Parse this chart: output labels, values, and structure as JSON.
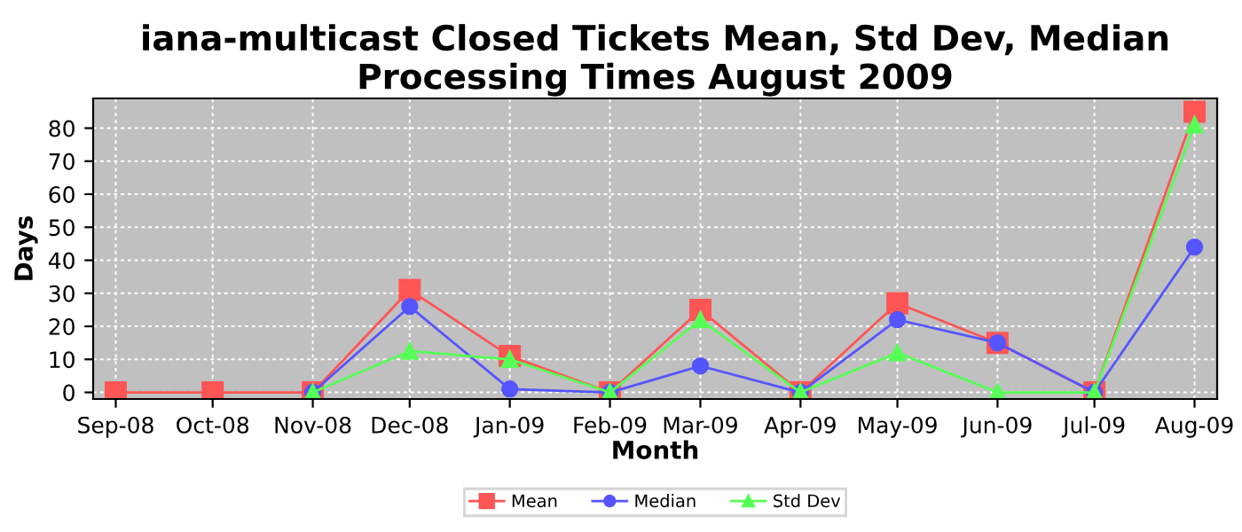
{
  "chart_data": {
    "type": "line",
    "title": "iana-multicast Closed Tickets Mean, Std Dev, Median Processing Times August 2009",
    "xlabel": "Month",
    "ylabel": "Days",
    "x": [
      "2008-09",
      "2008-10",
      "2008-11",
      "2008-12",
      "2009-01",
      "2009-02",
      "2009-03",
      "2009-04",
      "2009-05",
      "2009-06",
      "2009-07",
      "2009-08"
    ],
    "series": [
      {
        "name": "Mean",
        "color": "#ff5555",
        "marker": "square",
        "values": [
          0,
          0,
          0,
          31,
          11,
          0,
          25,
          0,
          27,
          15,
          0,
          85
        ]
      },
      {
        "name": "Median",
        "color": "#5555ff",
        "marker": "circle",
        "values": [
          null,
          null,
          0,
          26,
          1,
          0,
          8,
          0,
          22,
          15,
          0,
          44
        ]
      },
      {
        "name": "Std Dev",
        "color": "#55ff55",
        "marker": "triangle",
        "values": [
          null,
          null,
          0,
          12.5,
          10,
          0,
          22,
          0,
          12,
          0,
          0,
          81
        ]
      }
    ],
    "xlim": [
      "2008-08-25",
      "2009-08-08"
    ],
    "xticks": [
      {
        "value": "2008-09",
        "label": "Sep-08"
      },
      {
        "value": "2008-10",
        "label": "Oct-08"
      },
      {
        "value": "2008-11",
        "label": "Nov-08"
      },
      {
        "value": "2008-12",
        "label": "Dec-08"
      },
      {
        "value": "2009-01",
        "label": "Jan-09"
      },
      {
        "value": "2009-02",
        "label": "Feb-09"
      },
      {
        "value": "2009-03",
        "label": "Mar-09"
      },
      {
        "value": "2009-04",
        "label": "Apr-09"
      },
      {
        "value": "2009-05",
        "label": "May-09"
      },
      {
        "value": "2009-06",
        "label": "Jun-09"
      },
      {
        "value": "2009-07",
        "label": "Jul-09"
      },
      {
        "value": "2009-08",
        "label": "Aug-09"
      }
    ],
    "ylim": [
      -2,
      89
    ],
    "yticks": [
      0,
      10,
      20,
      30,
      40,
      50,
      60,
      70,
      80
    ],
    "grid": true,
    "legend": "bottom"
  }
}
